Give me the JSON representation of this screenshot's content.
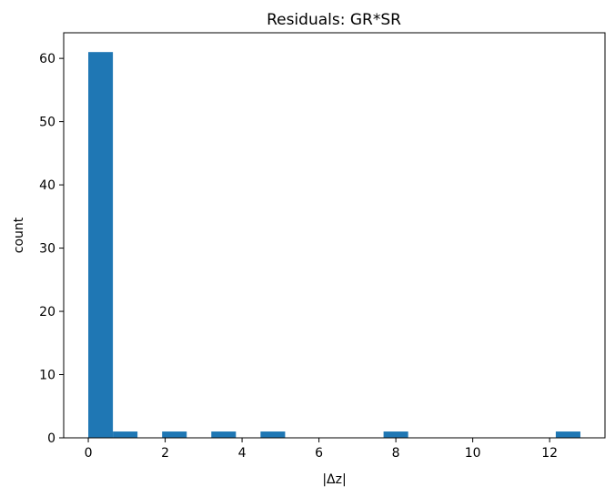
{
  "chart_data": {
    "type": "bar",
    "title": "Residuals: GR*SR",
    "xlabel": "|Δz|",
    "ylabel": "count",
    "xlim": [
      -0.64,
      13.44
    ],
    "ylim": [
      0,
      64.05
    ],
    "xticks": [
      0,
      2,
      4,
      6,
      8,
      10,
      12
    ],
    "yticks": [
      0,
      10,
      20,
      30,
      40,
      50,
      60
    ],
    "grid": false,
    "bar_color": "#1f77b4",
    "bins": [
      {
        "x0": 0.0,
        "x1": 0.64,
        "count": 61
      },
      {
        "x0": 0.64,
        "x1": 1.28,
        "count": 1
      },
      {
        "x0": 1.28,
        "x1": 1.92,
        "count": 0
      },
      {
        "x0": 1.92,
        "x1": 2.56,
        "count": 1
      },
      {
        "x0": 2.56,
        "x1": 3.2,
        "count": 0
      },
      {
        "x0": 3.2,
        "x1": 3.84,
        "count": 1
      },
      {
        "x0": 3.84,
        "x1": 4.48,
        "count": 0
      },
      {
        "x0": 4.48,
        "x1": 5.12,
        "count": 1
      },
      {
        "x0": 5.12,
        "x1": 5.76,
        "count": 0
      },
      {
        "x0": 5.76,
        "x1": 6.4,
        "count": 0
      },
      {
        "x0": 6.4,
        "x1": 7.04,
        "count": 0
      },
      {
        "x0": 7.04,
        "x1": 7.68,
        "count": 0
      },
      {
        "x0": 7.68,
        "x1": 8.32,
        "count": 1
      },
      {
        "x0": 8.32,
        "x1": 8.96,
        "count": 0
      },
      {
        "x0": 8.96,
        "x1": 9.6,
        "count": 0
      },
      {
        "x0": 9.6,
        "x1": 10.24,
        "count": 0
      },
      {
        "x0": 10.24,
        "x1": 10.88,
        "count": 0
      },
      {
        "x0": 10.88,
        "x1": 11.52,
        "count": 0
      },
      {
        "x0": 11.52,
        "x1": 12.16,
        "count": 0
      },
      {
        "x0": 12.16,
        "x1": 12.8,
        "count": 1
      }
    ]
  }
}
